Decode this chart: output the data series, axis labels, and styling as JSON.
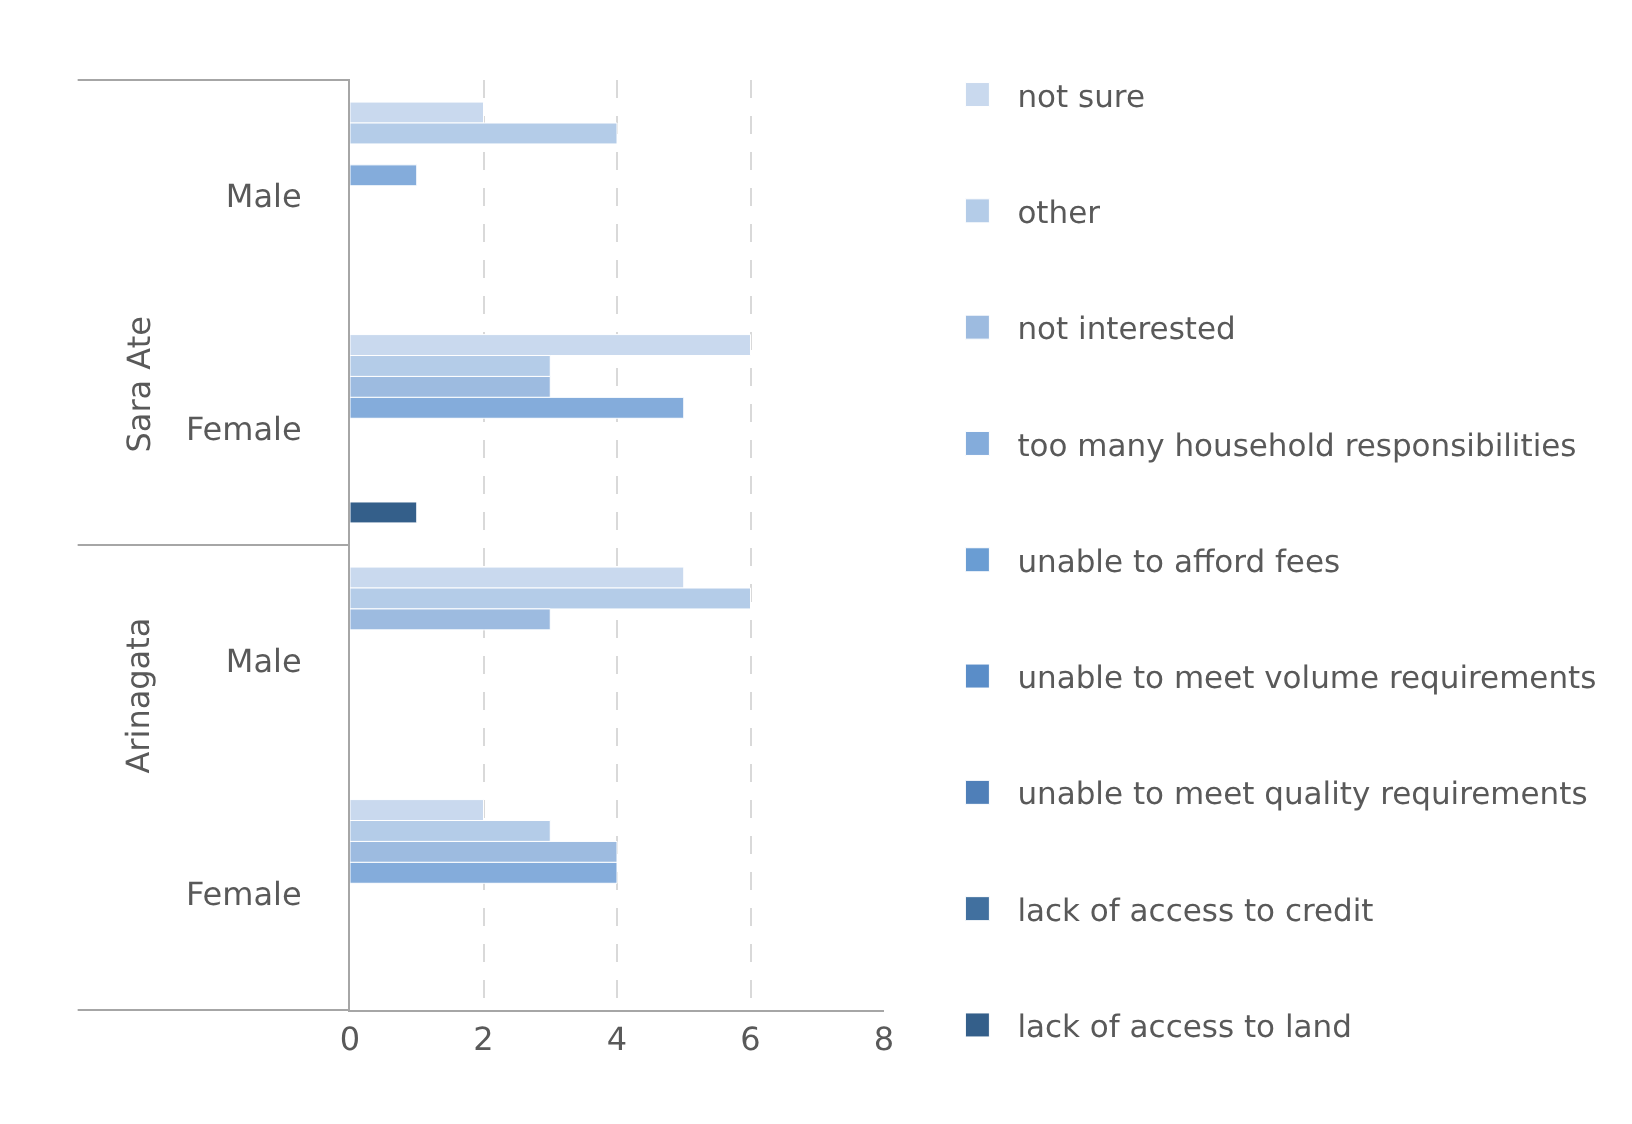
{
  "chart_data": {
    "type": "bar",
    "orientation": "horizontal",
    "categories": [
      "Male",
      "Female",
      "Male",
      "Female"
    ],
    "annotations": [
      "Sara Ate",
      "Arinagata"
    ],
    "series": [
      {
        "name": "not sure",
        "color": "#c9d9ee",
        "values": [
          2,
          6,
          5,
          2
        ]
      },
      {
        "name": "other",
        "color": "#b4cce8",
        "values": [
          4,
          3,
          6,
          3
        ]
      },
      {
        "name": "not interested",
        "color": "#9dbbe0",
        "values": [
          null,
          3,
          3,
          4
        ]
      },
      {
        "name": "too many household responsibilities",
        "color": "#84acdb",
        "values": [
          1,
          5,
          null,
          4
        ]
      },
      {
        "name": "unable to afford fees",
        "color": "#6a9dd3",
        "values": [
          null,
          null,
          null,
          null
        ]
      },
      {
        "name": "unable to meet volume requirements",
        "color": "#5a8dc8",
        "values": [
          null,
          null,
          null,
          null
        ]
      },
      {
        "name": "unable to meet quality requirements",
        "color": "#4f7fb8",
        "values": [
          null,
          null,
          null,
          null
        ]
      },
      {
        "name": "lack of access to credit",
        "color": "#41709f",
        "values": [
          null,
          null,
          null,
          null
        ]
      },
      {
        "name": "lack of access to land",
        "color": "#345f8a",
        "values": [
          null,
          1,
          null,
          null
        ]
      }
    ],
    "xlim": [
      0,
      8
    ],
    "xticks": [
      0,
      2,
      4,
      6,
      8
    ],
    "grid": "x",
    "legend": "right"
  }
}
